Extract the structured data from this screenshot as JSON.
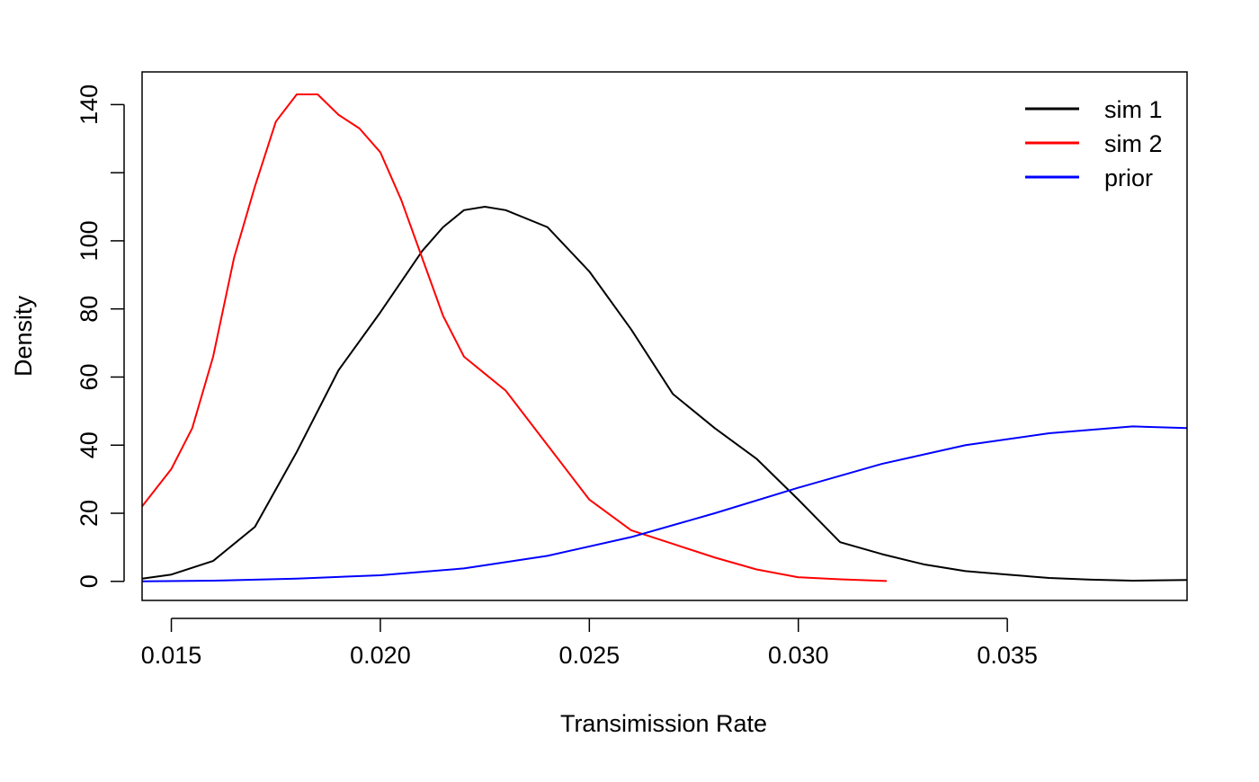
{
  "chart_data": {
    "type": "line",
    "title": "",
    "xlabel": "Transimission Rate",
    "ylabel": "Density",
    "xlim": [
      0.0143,
      0.0393
    ],
    "ylim": [
      -5.6,
      149.6
    ],
    "x_ticks": [
      {
        "value": 0.015,
        "label": "0.015"
      },
      {
        "value": 0.02,
        "label": "0.020"
      },
      {
        "value": 0.025,
        "label": "0.025"
      },
      {
        "value": 0.03,
        "label": "0.030"
      },
      {
        "value": 0.035,
        "label": "0.035"
      }
    ],
    "y_ticks": [
      {
        "value": 0,
        "label": "0"
      },
      {
        "value": 20,
        "label": "20"
      },
      {
        "value": 40,
        "label": "40"
      },
      {
        "value": 60,
        "label": "60"
      },
      {
        "value": 80,
        "label": "80"
      },
      {
        "value": 100,
        "label": "100"
      },
      {
        "value": 120,
        "label": ""
      },
      {
        "value": 140,
        "label": "140"
      }
    ],
    "grid": false,
    "legend_position": "top-right",
    "series": [
      {
        "name": "sim 1",
        "color": "#000000",
        "points": [
          [
            0.0143,
            0.8
          ],
          [
            0.015,
            2.0
          ],
          [
            0.016,
            6.0
          ],
          [
            0.017,
            16.0
          ],
          [
            0.018,
            38.0
          ],
          [
            0.019,
            62.0
          ],
          [
            0.02,
            79.0
          ],
          [
            0.021,
            97.0
          ],
          [
            0.0215,
            104.0
          ],
          [
            0.022,
            109.0
          ],
          [
            0.0225,
            110.0
          ],
          [
            0.023,
            109.0
          ],
          [
            0.024,
            104.0
          ],
          [
            0.025,
            91.0
          ],
          [
            0.026,
            74.0
          ],
          [
            0.027,
            55.0
          ],
          [
            0.028,
            45.0
          ],
          [
            0.029,
            36.0
          ],
          [
            0.03,
            24.0
          ],
          [
            0.031,
            11.5
          ],
          [
            0.032,
            8.0
          ],
          [
            0.033,
            5.0
          ],
          [
            0.034,
            3.0
          ],
          [
            0.035,
            2.0
          ],
          [
            0.036,
            1.0
          ],
          [
            0.037,
            0.5
          ],
          [
            0.038,
            0.2
          ],
          [
            0.0393,
            0.4
          ]
        ]
      },
      {
        "name": "sim 2",
        "color": "#ff0000",
        "points": [
          [
            0.0143,
            22.0
          ],
          [
            0.015,
            33.0
          ],
          [
            0.0155,
            45.0
          ],
          [
            0.016,
            66.0
          ],
          [
            0.0165,
            95.0
          ],
          [
            0.017,
            116.0
          ],
          [
            0.0175,
            135.0
          ],
          [
            0.018,
            143.0
          ],
          [
            0.0185,
            143.0
          ],
          [
            0.019,
            137.0
          ],
          [
            0.0195,
            133.0
          ],
          [
            0.02,
            126.0
          ],
          [
            0.0205,
            112.0
          ],
          [
            0.021,
            95.0
          ],
          [
            0.0215,
            78.0
          ],
          [
            0.022,
            66.0
          ],
          [
            0.0225,
            61.0
          ],
          [
            0.023,
            56.0
          ],
          [
            0.024,
            40.0
          ],
          [
            0.025,
            24.0
          ],
          [
            0.026,
            15.0
          ],
          [
            0.027,
            11.0
          ],
          [
            0.028,
            7.0
          ],
          [
            0.029,
            3.5
          ],
          [
            0.03,
            1.2
          ],
          [
            0.031,
            0.6
          ],
          [
            0.0321,
            0.1
          ]
        ]
      },
      {
        "name": "prior",
        "color": "#0000ff",
        "points": [
          [
            0.0143,
            0.0
          ],
          [
            0.016,
            0.2
          ],
          [
            0.018,
            0.8
          ],
          [
            0.02,
            1.8
          ],
          [
            0.022,
            3.8
          ],
          [
            0.024,
            7.5
          ],
          [
            0.026,
            13.0
          ],
          [
            0.028,
            20.0
          ],
          [
            0.03,
            27.5
          ],
          [
            0.032,
            34.5
          ],
          [
            0.034,
            40.0
          ],
          [
            0.036,
            43.5
          ],
          [
            0.038,
            45.5
          ],
          [
            0.0393,
            45.0
          ]
        ]
      }
    ]
  }
}
